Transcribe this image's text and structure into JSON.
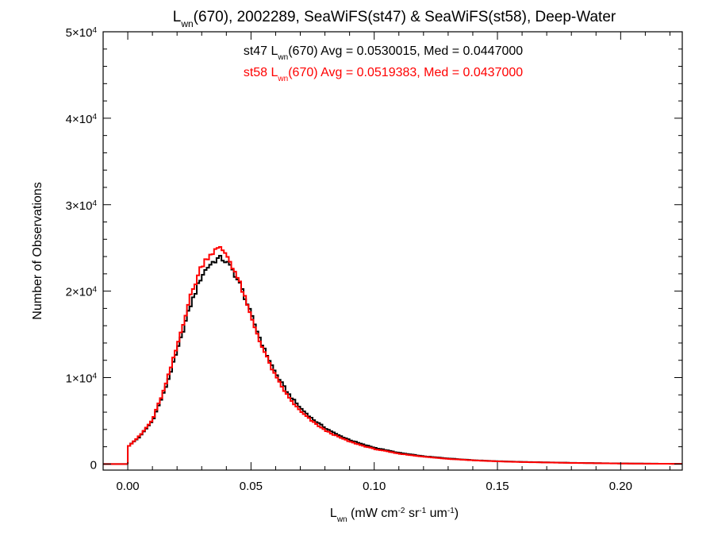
{
  "chart_data": {
    "type": "line",
    "title": {
      "main": "L",
      "main_sub": "wn",
      "rest": "(670), 2002289, SeaWiFS(st47) & SeaWiFS(st58), Deep-Water"
    },
    "xlabel": {
      "main": "L",
      "main_sub": "wn",
      "p1": " (mW cm",
      "s1": "-2",
      "p2": " sr",
      "s2": "-1",
      "p3": " um",
      "s3": "-1",
      "p4": ")"
    },
    "ylabel": "Number of Observations",
    "xlim": [
      -0.01,
      0.225
    ],
    "ylim": [
      -700,
      50000
    ],
    "x_ticks": [
      0.0,
      0.05,
      0.1,
      0.15,
      0.2
    ],
    "x_tick_labels": [
      "0.00",
      "0.05",
      "0.10",
      "0.15",
      "0.20"
    ],
    "y_ticks": [
      0,
      10000,
      20000,
      30000,
      40000,
      50000
    ],
    "y_tick_labels": [
      {
        "mant": "0",
        "exp": ""
      },
      {
        "mant": "1×10",
        "exp": "4"
      },
      {
        "mant": "2×10",
        "exp": "4"
      },
      {
        "mant": "3×10",
        "exp": "4"
      },
      {
        "mant": "4×10",
        "exp": "4"
      },
      {
        "mant": "5×10",
        "exp": "4"
      }
    ],
    "annotations": [
      {
        "color": "#000000",
        "pre": "st47 L",
        "sub": "wn",
        "post": "(670) Avg = 0.0530015, Med = 0.0447000"
      },
      {
        "color": "#ff0000",
        "pre": "st58 L",
        "sub": "wn",
        "post": "(670) Avg = 0.0519383, Med = 0.0437000"
      }
    ],
    "series": [
      {
        "color": "#000000",
        "x": [
          0.0,
          0.005,
          0.01,
          0.015,
          0.02,
          0.025,
          0.03,
          0.033,
          0.036,
          0.038,
          0.04,
          0.043,
          0.046,
          0.05,
          0.055,
          0.06,
          0.065,
          0.07,
          0.075,
          0.08,
          0.085,
          0.09,
          0.095,
          0.1,
          0.11,
          0.12,
          0.13,
          0.14,
          0.15,
          0.16,
          0.18,
          0.2,
          0.225
        ],
        "y": [
          2000,
          3200,
          5000,
          8500,
          13000,
          18000,
          21800,
          23000,
          23700,
          23800,
          23400,
          22200,
          20500,
          17300,
          13500,
          10500,
          8200,
          6500,
          5200,
          4200,
          3400,
          2800,
          2300,
          1900,
          1300,
          900,
          650,
          450,
          330,
          250,
          140,
          70,
          20
        ]
      },
      {
        "color": "#ff0000",
        "x": [
          0.0,
          0.005,
          0.01,
          0.015,
          0.02,
          0.025,
          0.03,
          0.033,
          0.036,
          0.038,
          0.04,
          0.043,
          0.046,
          0.05,
          0.055,
          0.06,
          0.065,
          0.07,
          0.075,
          0.08,
          0.085,
          0.09,
          0.095,
          0.1,
          0.11,
          0.12,
          0.13,
          0.14,
          0.15,
          0.16,
          0.18,
          0.2,
          0.225
        ],
        "y": [
          2000,
          3300,
          5100,
          8800,
          13600,
          19000,
          23000,
          24200,
          24800,
          24900,
          24300,
          22600,
          20500,
          17000,
          13200,
          10100,
          7800,
          6100,
          4900,
          3900,
          3200,
          2600,
          2150,
          1750,
          1200,
          850,
          600,
          430,
          310,
          230,
          130,
          60,
          20
        ]
      }
    ]
  }
}
